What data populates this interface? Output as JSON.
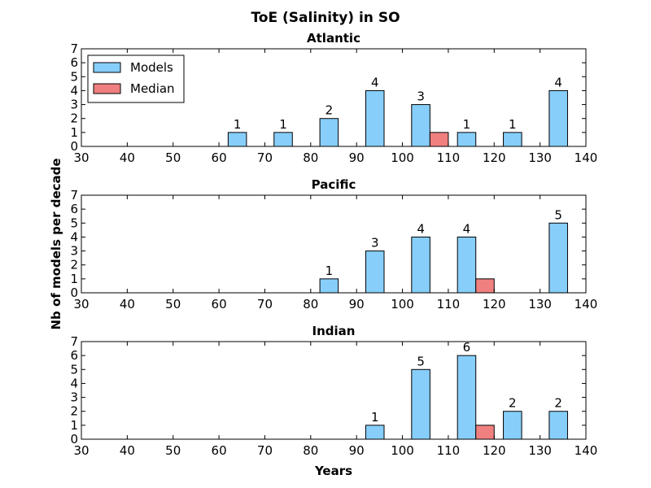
{
  "figure": {
    "title": "ToE (Salinity) in SO",
    "xlabel": "Years",
    "ylabel": "Nb of models per decade"
  },
  "legend": {
    "placement": "top-left (Atlantic panel)",
    "items": [
      {
        "label": "Models",
        "color": "#87cefa"
      },
      {
        "label": "Median",
        "color": "#f08080"
      }
    ]
  },
  "chart_data": [
    {
      "type": "bar",
      "title": "Atlantic",
      "xlim": [
        30,
        140
      ],
      "ylim": [
        0,
        7
      ],
      "xticks": [
        30,
        40,
        50,
        60,
        70,
        80,
        90,
        100,
        110,
        120,
        130,
        140
      ],
      "yticks": [
        0,
        1,
        2,
        3,
        4,
        5,
        6,
        7
      ],
      "series": [
        {
          "name": "Models",
          "color": "#87cefa",
          "bins": [
            [
              60,
              70,
              1
            ],
            [
              70,
              80,
              1
            ],
            [
              80,
              90,
              2
            ],
            [
              90,
              100,
              4
            ],
            [
              100,
              110,
              3
            ],
            [
              110,
              120,
              1
            ],
            [
              120,
              130,
              1
            ],
            [
              130,
              140,
              4
            ]
          ]
        },
        {
          "name": "Median",
          "color": "#f08080",
          "bins": [
            [
              100,
              110,
              1
            ]
          ]
        }
      ]
    },
    {
      "type": "bar",
      "title": "Pacific",
      "xlim": [
        30,
        140
      ],
      "ylim": [
        0,
        7
      ],
      "xticks": [
        30,
        40,
        50,
        60,
        70,
        80,
        90,
        100,
        110,
        120,
        130,
        140
      ],
      "yticks": [
        0,
        1,
        2,
        3,
        4,
        5,
        6,
        7
      ],
      "series": [
        {
          "name": "Models",
          "color": "#87cefa",
          "bins": [
            [
              80,
              90,
              1
            ],
            [
              90,
              100,
              3
            ],
            [
              100,
              110,
              4
            ],
            [
              110,
              120,
              4
            ],
            [
              130,
              140,
              5
            ]
          ]
        },
        {
          "name": "Median",
          "color": "#f08080",
          "bins": [
            [
              110,
              120,
              1
            ]
          ]
        }
      ]
    },
    {
      "type": "bar",
      "title": "Indian",
      "xlim": [
        30,
        140
      ],
      "ylim": [
        0,
        7
      ],
      "xticks": [
        30,
        40,
        50,
        60,
        70,
        80,
        90,
        100,
        110,
        120,
        130,
        140
      ],
      "yticks": [
        0,
        1,
        2,
        3,
        4,
        5,
        6,
        7
      ],
      "series": [
        {
          "name": "Models",
          "color": "#87cefa",
          "bins": [
            [
              90,
              100,
              1
            ],
            [
              100,
              110,
              5
            ],
            [
              110,
              120,
              6
            ],
            [
              120,
              130,
              2
            ],
            [
              130,
              140,
              2
            ]
          ]
        },
        {
          "name": "Median",
          "color": "#f08080",
          "bins": [
            [
              110,
              120,
              1
            ]
          ]
        }
      ]
    }
  ]
}
